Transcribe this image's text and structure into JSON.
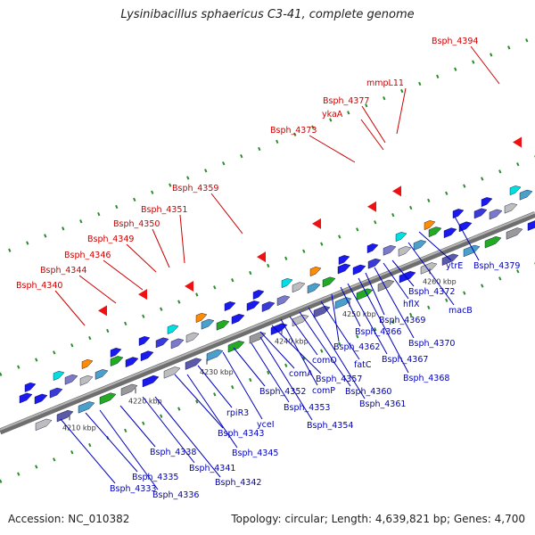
{
  "title": "Lysinibacillus sphaericus C3-41, complete genome",
  "footer": {
    "accession": "Accession: NC_010382",
    "summary": "Topology: circular; Length: 4,639,821 bp; Genes: 4,700"
  },
  "colors": {
    "backbone": "#8c8c8c",
    "forward_gene": "#1a1aee",
    "reverse_gene": "#ee1111",
    "rna_green": "#22aa22",
    "upper_label": "#cc0000",
    "lower_label": "#0000bb"
  },
  "scale_ticks": [
    "4210 kbp",
    "4220 kbp",
    "4230 kbp",
    "4240 kbp",
    "4250 kbp",
    "4260 kbp"
  ],
  "upper_labels": [
    "Bsph_4340",
    "Bsph_4344",
    "Bsph_4346",
    "Bsph_4349",
    "Bsph_4350",
    "Bsph_4351",
    "Bsph_4359",
    "Bsph_4373",
    "ykaA",
    "Bsph_4377",
    "mmpL11",
    "Bsph_4394"
  ],
  "lower_labels": [
    "Bsph_4333",
    "Bsph_4335",
    "Bsph_4336",
    "Bsph_4338",
    "Bsph_4341",
    "Bsph_4342",
    "Bsph_4343",
    "Bsph_4345",
    "rpiR3",
    "yceI",
    "Bsph_4352",
    "Bsph_4353",
    "Bsph_4354",
    "comA",
    "Bsph_4357",
    "comP",
    "comQ",
    "Bsph_4360",
    "Bsph_4361",
    "fatC",
    "Bsph_4362",
    "Bsph_4366",
    "Bsph_4367",
    "Bsph_4368",
    "Bsph_4369",
    "Bsph_4370",
    "hflX",
    "Bsph_4372",
    "macB",
    "ytrE",
    "Bsph_4379"
  ]
}
